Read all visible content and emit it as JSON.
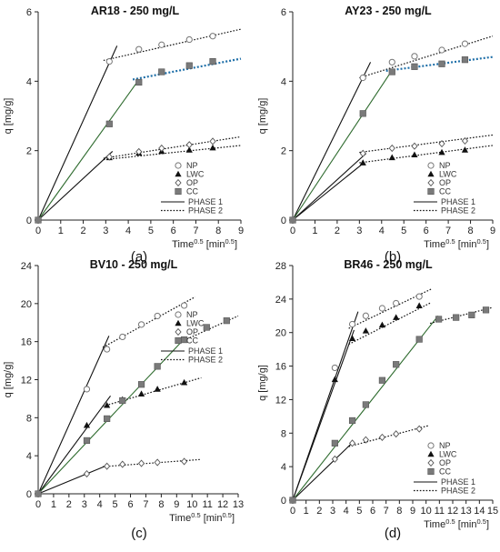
{
  "chart_data": [
    {
      "type": "scatter",
      "panel_label": "(a)",
      "title": "AR18 - 250 mg/L",
      "xlabel": "Time",
      "xlabel_sup": "0.5",
      "xlabel_unit_pre": " [min",
      "xlabel_unit_sup": "0.5",
      "xlabel_unit_post": "]",
      "ylabel": "q [mg/g]",
      "xlim": [
        0,
        9
      ],
      "xticks": [
        0,
        1,
        2,
        3,
        4,
        5,
        6,
        7,
        8,
        9
      ],
      "ylim": [
        0,
        6
      ],
      "yticks": [
        0,
        2,
        4,
        6
      ],
      "series": [
        {
          "name": "NP",
          "marker": "circle",
          "x": [
            0,
            3.16,
            4.47,
            5.48,
            6.71,
            7.75
          ],
          "y": [
            0,
            4.57,
            4.92,
            5.05,
            5.2,
            5.3
          ]
        },
        {
          "name": "LWC",
          "marker": "triangle",
          "x": [
            0,
            3.16,
            4.47,
            5.48,
            6.71,
            7.75
          ],
          "y": [
            0,
            1.8,
            1.93,
            1.98,
            2.02,
            2.08
          ]
        },
        {
          "name": "OP",
          "marker": "diamond",
          "x": [
            0,
            3.16,
            4.47,
            5.48,
            6.71,
            7.75
          ],
          "y": [
            0,
            1.82,
            1.97,
            2.07,
            2.17,
            2.27
          ]
        },
        {
          "name": "CC",
          "marker": "square",
          "x": [
            0,
            3.16,
            4.47,
            5.48,
            6.71,
            7.75
          ],
          "y": [
            0,
            2.77,
            3.97,
            4.27,
            4.45,
            4.57
          ]
        }
      ],
      "phase1": [
        {
          "x": [
            0,
            3.5
          ],
          "y": [
            0,
            5.02
          ],
          "color": "#111111"
        },
        {
          "x": [
            0,
            3.3
          ],
          "y": [
            0,
            1.98
          ],
          "color": "#111111"
        },
        {
          "x": [
            0,
            4.4
          ],
          "y": [
            0,
            3.98
          ],
          "color": "#2e6b2e"
        }
      ],
      "phase2": [
        {
          "x": [
            2.9,
            9
          ],
          "y": [
            4.6,
            5.5
          ],
          "color": "#111111"
        },
        {
          "x": [
            2.9,
            9
          ],
          "y": [
            1.78,
            2.4
          ],
          "color": "#111111"
        },
        {
          "x": [
            2.9,
            9
          ],
          "y": [
            1.74,
            2.15
          ],
          "color": "#111111"
        },
        {
          "x": [
            4.2,
            9
          ],
          "y": [
            4.05,
            4.65
          ],
          "color": "#1f6fa8"
        }
      ],
      "legend": [
        "NP",
        "LWC",
        "OP",
        "CC",
        "PHASE 1",
        "PHASE 2"
      ]
    },
    {
      "type": "scatter",
      "panel_label": "(b)",
      "title": "AY23 - 250 mg/L",
      "xlabel": "Time",
      "xlabel_sup": "0.5",
      "xlabel_unit_pre": " [min",
      "xlabel_unit_sup": "0.5",
      "xlabel_unit_post": "]",
      "ylabel": "q [mg/g]",
      "xlim": [
        0,
        9
      ],
      "xticks": [
        0,
        1,
        2,
        3,
        4,
        5,
        6,
        7,
        8,
        9
      ],
      "ylim": [
        0,
        6
      ],
      "yticks": [
        0,
        2,
        4,
        6
      ],
      "series": [
        {
          "name": "NP",
          "marker": "circle",
          "x": [
            0,
            3.16,
            4.47,
            5.48,
            6.71,
            7.75
          ],
          "y": [
            0,
            4.1,
            4.55,
            4.72,
            4.9,
            5.08
          ]
        },
        {
          "name": "LWC",
          "marker": "triangle",
          "x": [
            0,
            3.16,
            4.47,
            5.48,
            6.71,
            7.75
          ],
          "y": [
            0,
            1.65,
            1.8,
            1.88,
            1.95,
            2.02
          ]
        },
        {
          "name": "OP",
          "marker": "diamond",
          "x": [
            0,
            3.16,
            4.47,
            5.48,
            6.71,
            7.75
          ],
          "y": [
            0,
            1.92,
            2.07,
            2.13,
            2.2,
            2.28
          ]
        },
        {
          "name": "CC",
          "marker": "square",
          "x": [
            0,
            3.16,
            4.47,
            5.48,
            6.71,
            7.75
          ],
          "y": [
            0,
            3.07,
            4.27,
            4.42,
            4.5,
            4.62
          ]
        }
      ],
      "phase1": [
        {
          "x": [
            0,
            3.5
          ],
          "y": [
            0,
            4.55
          ],
          "color": "#111111"
        },
        {
          "x": [
            0,
            3.3
          ],
          "y": [
            0,
            1.92
          ],
          "color": "#111111"
        },
        {
          "x": [
            0,
            3.2
          ],
          "y": [
            0,
            1.65
          ],
          "color": "#111111"
        },
        {
          "x": [
            0,
            4.4
          ],
          "y": [
            0,
            4.25
          ],
          "color": "#2e6b2e"
        }
      ],
      "phase2": [
        {
          "x": [
            3.0,
            9
          ],
          "y": [
            4.1,
            5.3
          ],
          "color": "#111111"
        },
        {
          "x": [
            3.0,
            9
          ],
          "y": [
            1.95,
            2.45
          ],
          "color": "#111111"
        },
        {
          "x": [
            3.0,
            9
          ],
          "y": [
            1.65,
            2.15
          ],
          "color": "#111111"
        },
        {
          "x": [
            4.2,
            9
          ],
          "y": [
            4.3,
            4.7
          ],
          "color": "#1f6fa8"
        }
      ],
      "legend": [
        "NP",
        "LWC",
        "OP",
        "CC",
        "PHASE 1",
        "PHASE 2"
      ]
    },
    {
      "type": "scatter",
      "panel_label": "(c)",
      "title": "BV10 - 250 mg/L",
      "xlabel": "Time",
      "xlabel_sup": "0.5",
      "xlabel_unit_pre": " [min",
      "xlabel_unit_sup": "0.5",
      "xlabel_unit_post": "]",
      "ylabel": "q [mg/g]",
      "xlim": [
        0,
        13
      ],
      "xticks": [
        0,
        1,
        2,
        3,
        4,
        5,
        6,
        7,
        8,
        9,
        10,
        11,
        12,
        13
      ],
      "ylim": [
        0,
        24
      ],
      "yticks": [
        0,
        4,
        8,
        12,
        16,
        20,
        24
      ],
      "series": [
        {
          "name": "NP",
          "marker": "circle",
          "x": [
            0,
            3.16,
            4.47,
            5.48,
            6.71,
            7.75,
            9.49
          ],
          "y": [
            0,
            11.0,
            15.2,
            16.5,
            17.8,
            18.7,
            19.8
          ]
        },
        {
          "name": "LWC",
          "marker": "triangle",
          "x": [
            0,
            3.16,
            4.47,
            5.48,
            6.71,
            7.75,
            9.49
          ],
          "y": [
            0,
            7.2,
            9.3,
            9.9,
            10.5,
            11.0,
            11.7
          ]
        },
        {
          "name": "OP",
          "marker": "diamond",
          "x": [
            0,
            3.16,
            4.47,
            5.48,
            6.71,
            7.75,
            9.49
          ],
          "y": [
            0,
            2.1,
            2.9,
            3.1,
            3.2,
            3.3,
            3.4
          ]
        },
        {
          "name": "CC",
          "marker": "square",
          "x": [
            0,
            3.16,
            4.47,
            5.48,
            6.71,
            7.75,
            9.49,
            10.95,
            12.25
          ],
          "y": [
            0,
            5.6,
            7.9,
            9.8,
            11.5,
            13.4,
            16.2,
            17.5,
            18.2
          ]
        }
      ],
      "phase1": [
        {
          "x": [
            0,
            4.6
          ],
          "y": [
            0,
            16.6
          ],
          "color": "#111111"
        },
        {
          "x": [
            0,
            4.7
          ],
          "y": [
            0,
            10.3
          ],
          "color": "#111111"
        },
        {
          "x": [
            0,
            4.5
          ],
          "y": [
            0,
            3.0
          ],
          "color": "#111111"
        },
        {
          "x": [
            0,
            9.5
          ],
          "y": [
            0,
            16.3
          ],
          "color": "#2e6b2e"
        }
      ],
      "phase2": [
        {
          "x": [
            4.2,
            10.2
          ],
          "y": [
            15.4,
            20.7
          ],
          "color": "#111111"
        },
        {
          "x": [
            4.2,
            10.6
          ],
          "y": [
            9.2,
            12.2
          ],
          "color": "#111111"
        },
        {
          "x": [
            4.2,
            10.5
          ],
          "y": [
            2.85,
            3.6
          ],
          "color": "#111111"
        },
        {
          "x": [
            9.3,
            13
          ],
          "y": [
            16.0,
            18.7
          ],
          "color": "#111111"
        }
      ],
      "legend": [
        "NP",
        "LWC",
        "OP",
        "CC",
        "PHASE 1",
        "PHASE 2"
      ]
    },
    {
      "type": "scatter",
      "panel_label": "(d)",
      "title": "BR46 - 250 mg/L",
      "xlabel": "Time",
      "xlabel_sup": "0.5",
      "xlabel_unit_pre": " [min",
      "xlabel_unit_sup": "0.5",
      "xlabel_unit_post": "]",
      "ylabel": "q [mg/g]",
      "xlim": [
        0,
        15
      ],
      "xticks": [
        0,
        1,
        2,
        3,
        4,
        5,
        6,
        7,
        8,
        9,
        10,
        11,
        12,
        13,
        14,
        15
      ],
      "ylim": [
        0,
        28
      ],
      "yticks": [
        0,
        4,
        8,
        12,
        16,
        20,
        24,
        28
      ],
      "series": [
        {
          "name": "NP",
          "marker": "circle",
          "x": [
            0,
            3.16,
            4.47,
            5.48,
            6.71,
            7.75,
            9.49
          ],
          "y": [
            0,
            15.8,
            21.0,
            22.0,
            22.9,
            23.5,
            24.3
          ]
        },
        {
          "name": "LWC",
          "marker": "triangle",
          "x": [
            0,
            3.16,
            4.47,
            5.48,
            6.71,
            7.75,
            9.49
          ],
          "y": [
            0,
            14.4,
            19.3,
            20.2,
            20.9,
            21.8,
            23.2
          ]
        },
        {
          "name": "OP",
          "marker": "diamond",
          "x": [
            0,
            3.16,
            4.47,
            5.48,
            6.71,
            7.75,
            9.49
          ],
          "y": [
            0,
            4.9,
            6.8,
            7.2,
            7.5,
            7.9,
            8.5
          ]
        },
        {
          "name": "CC",
          "marker": "square",
          "x": [
            0,
            3.16,
            4.47,
            5.48,
            6.71,
            7.75,
            9.49,
            10.95,
            12.25,
            13.42,
            14.49
          ],
          "y": [
            0,
            6.8,
            9.5,
            11.4,
            14.3,
            16.2,
            19.2,
            21.6,
            21.8,
            22.1,
            22.7
          ]
        }
      ],
      "phase1": [
        {
          "x": [
            0,
            4.9
          ],
          "y": [
            0,
            22.5
          ],
          "color": "#111111"
        },
        {
          "x": [
            0,
            4.6
          ],
          "y": [
            0,
            20.3
          ],
          "color": "#111111"
        },
        {
          "x": [
            0,
            4.5
          ],
          "y": [
            0,
            6.9
          ],
          "color": "#111111"
        },
        {
          "x": [
            0,
            10.9
          ],
          "y": [
            0,
            22.0
          ],
          "color": "#2e6b2e"
        }
      ],
      "phase2": [
        {
          "x": [
            4.2,
            10.4
          ],
          "y": [
            20.5,
            25.2
          ],
          "color": "#111111"
        },
        {
          "x": [
            4.2,
            10.4
          ],
          "y": [
            18.6,
            23.6
          ],
          "color": "#111111"
        },
        {
          "x": [
            4.2,
            10.2
          ],
          "y": [
            6.4,
            8.9
          ],
          "color": "#111111"
        },
        {
          "x": [
            10.3,
            15
          ],
          "y": [
            21.1,
            23.0
          ],
          "color": "#111111"
        }
      ],
      "legend": [
        "NP",
        "LWC",
        "OP",
        "CC",
        "PHASE 1",
        "PHASE 2"
      ]
    }
  ]
}
